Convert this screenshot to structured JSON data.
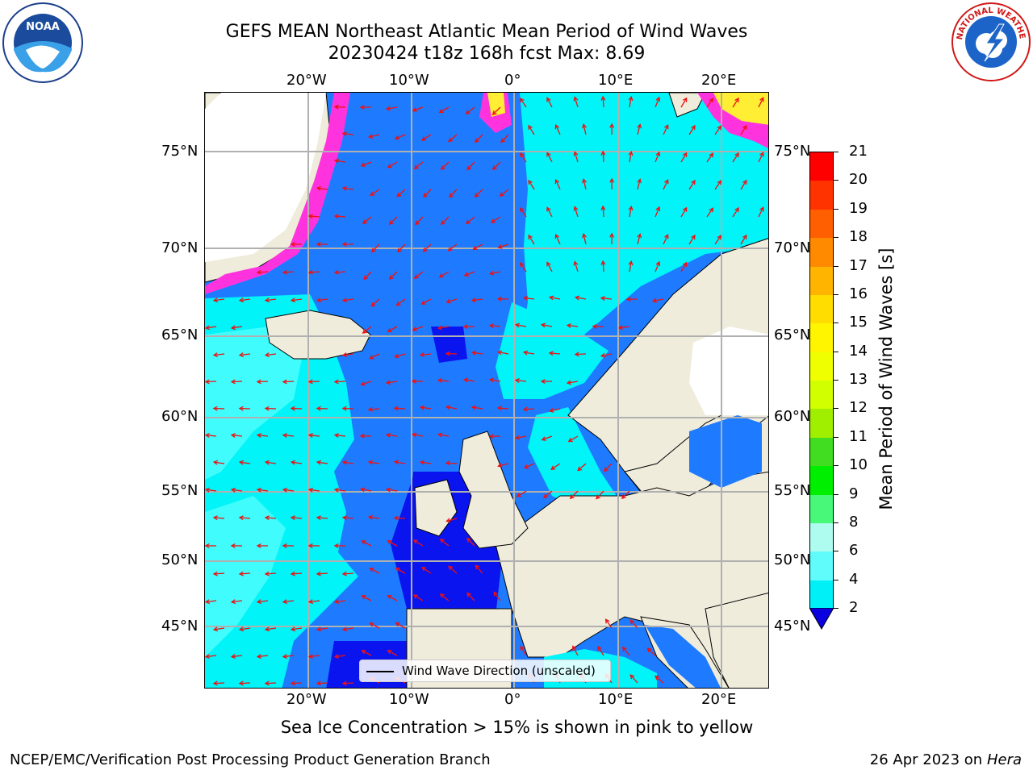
{
  "header": {
    "title_line1": "GEFS MEAN Northeast Atlantic Mean Period of Wind Waves",
    "title_line2": "20230424 t18z 168h fcst   Max: 8.69"
  },
  "logos": {
    "left": "NOAA",
    "right": "NATIONAL WEATHER SERVICE"
  },
  "map": {
    "lon_ticks": [
      "20°W",
      "10°W",
      "0°",
      "10°E",
      "20°E"
    ],
    "lat_ticks": [
      "75°N",
      "70°N",
      "65°N",
      "60°N",
      "55°N",
      "50°N",
      "45°N"
    ],
    "colors": {
      "land": "#efecdc",
      "ice": "#ffffff",
      "period_2_4": "#1e7bff",
      "period_lt_2": "#0a14ee",
      "period_4_6": "#00f4f8",
      "period_6_8": "#40fcfc",
      "ice_pink": "#ff33dd",
      "ice_yellow": "#ffee33",
      "arrow": "#ee1111"
    }
  },
  "colorbar": {
    "label": "Mean Period of Wind Waves [s]",
    "ticks": [
      "21",
      "20",
      "19",
      "18",
      "17",
      "16",
      "15",
      "14",
      "13",
      "12",
      "11",
      "10",
      "9",
      "8",
      "6",
      "4",
      "2"
    ],
    "colors": [
      "#ff0000",
      "#ff3300",
      "#ff5f00",
      "#ff8a00",
      "#ffb400",
      "#ffdd00",
      "#fff500",
      "#f0ff00",
      "#d2ff00",
      "#a0ee00",
      "#40dd20",
      "#00ee00",
      "#48f878",
      "#aefcf0",
      "#60fcfc",
      "#00f0f8",
      "#0078ff"
    ],
    "extend_color": "#0a00e0"
  },
  "legend": {
    "label": "Wind Wave Direction (unscaled)"
  },
  "footnote": "Sea Ice Concentration > 15% is shown in pink to yellow",
  "footer": {
    "left": "NCEP/EMC/Verification Post Processing Product Generation Branch",
    "right_date": "26 Apr 2023 on ",
    "right_host": "Hera"
  }
}
